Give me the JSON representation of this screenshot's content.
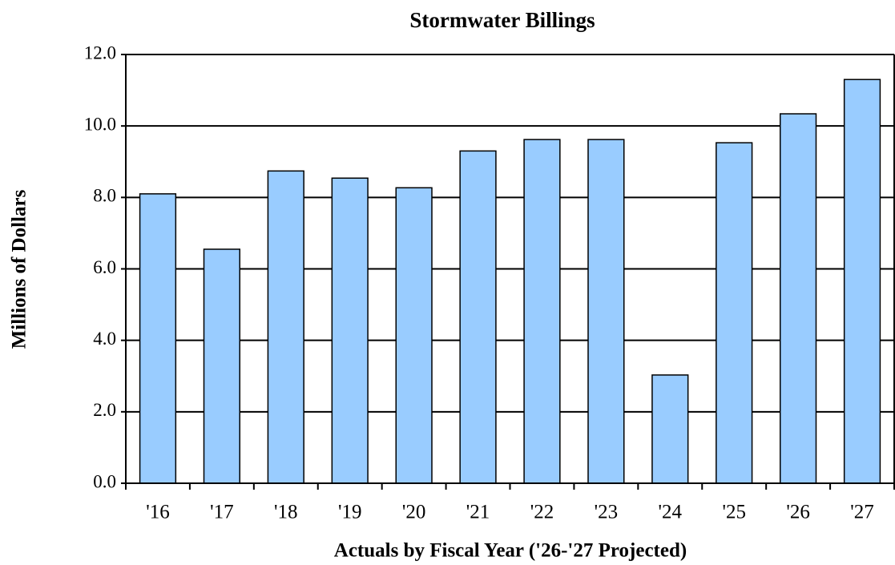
{
  "chart_data": {
    "type": "bar",
    "title": "Stormwater Billings",
    "x_label": "Actuals by Fiscal Year ('26-'27 Projected)",
    "y_label": "Millions of Dollars",
    "categories": [
      "'16",
      "'17",
      "'18",
      "'19",
      "'20",
      "'21",
      "'22",
      "'23",
      "'24",
      "'25",
      "'26",
      "'27"
    ],
    "values": [
      8.1,
      6.55,
      8.74,
      8.54,
      8.27,
      9.3,
      9.62,
      9.62,
      3.03,
      9.53,
      10.34,
      11.3
    ],
    "color": "#99ccff",
    "ylim": [
      0,
      12
    ],
    "yticks": [
      {
        "value": 0,
        "label": "0.0"
      },
      {
        "value": 2,
        "label": "2.0"
      },
      {
        "value": 4,
        "label": "4.0"
      },
      {
        "value": 6,
        "label": "6.0"
      },
      {
        "value": 8,
        "label": "8.0"
      },
      {
        "value": 10,
        "label": "10.0"
      },
      {
        "value": 12,
        "label": "12.0"
      }
    ],
    "grid": true
  }
}
